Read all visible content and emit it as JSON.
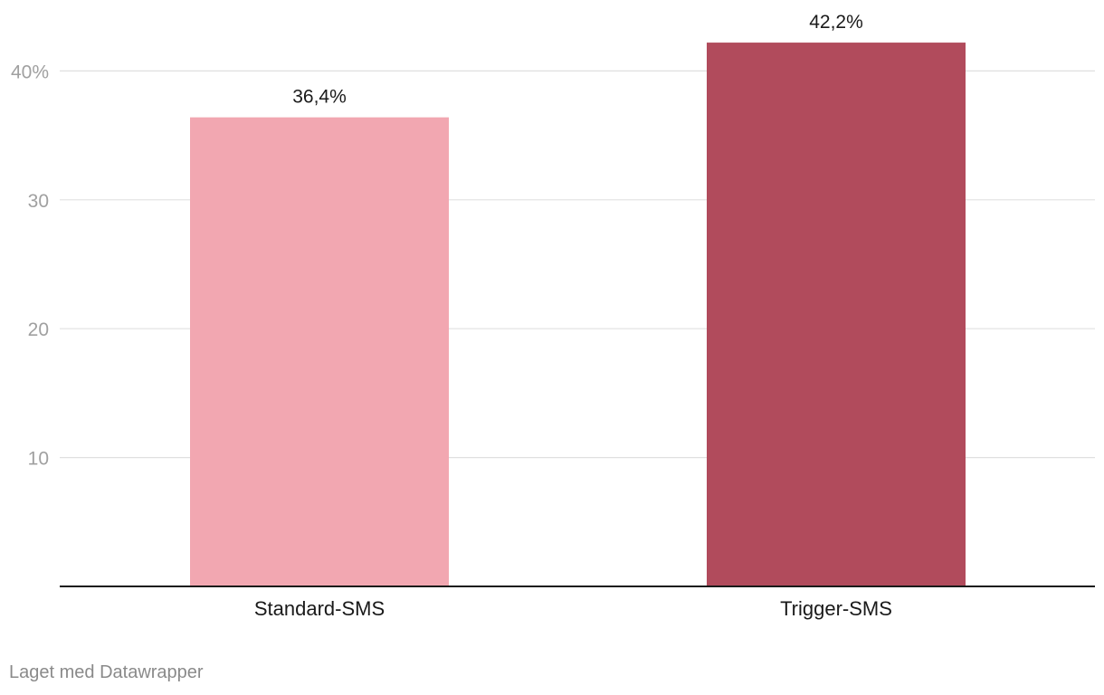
{
  "chart_data": {
    "type": "bar",
    "categories": [
      "Standard-SMS",
      "Trigger-SMS"
    ],
    "values": [
      36.4,
      42.2
    ],
    "value_labels": [
      "36,4%",
      "42,2%"
    ],
    "colors": [
      "#f2a7b1",
      "#b14b5c"
    ],
    "title": "",
    "xlabel": "",
    "ylabel": "",
    "ylim": [
      0,
      44
    ],
    "yticks": [
      10,
      20,
      30,
      40
    ],
    "ytick_labels": [
      "10",
      "20",
      "30",
      "40%"
    ],
    "grid": true,
    "gridline_color": "#e0e0e0",
    "axis_color": "#1a1a1a"
  },
  "footer": {
    "credit": "Laget med Datawrapper"
  }
}
